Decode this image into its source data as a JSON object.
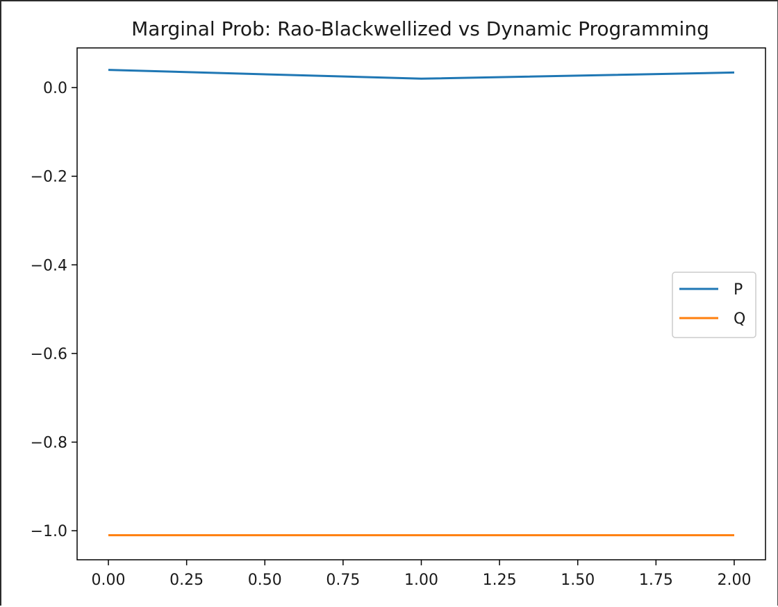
{
  "chart_data": {
    "type": "line",
    "title": "Marginal Prob: Rao-Blackwellized vs Dynamic Programming",
    "xlabel": "",
    "ylabel": "",
    "x": [
      0,
      1,
      2
    ],
    "series": [
      {
        "name": "P",
        "color": "#1f77b4",
        "values": [
          0.04,
          0.02,
          0.034
        ]
      },
      {
        "name": "Q",
        "color": "#ff7f0e",
        "values": [
          -1.01,
          -1.01,
          -1.01
        ]
      }
    ],
    "xlim": [
      -0.1,
      2.1
    ],
    "ylim": [
      -1.0655,
      0.0895
    ],
    "xticks": [
      0.0,
      0.25,
      0.5,
      0.75,
      1.0,
      1.25,
      1.5,
      1.75,
      2.0
    ],
    "xtick_labels": [
      "0.00",
      "0.25",
      "0.50",
      "0.75",
      "1.00",
      "1.25",
      "1.50",
      "1.75",
      "2.00"
    ],
    "yticks": [
      0.0,
      -0.2,
      -0.4,
      -0.6,
      -0.8,
      -1.0
    ],
    "ytick_labels": [
      "0.0",
      "−0.2",
      "−0.4",
      "−0.6",
      "−0.8",
      "−1.0"
    ],
    "grid": false,
    "legend_position": "center-right"
  }
}
